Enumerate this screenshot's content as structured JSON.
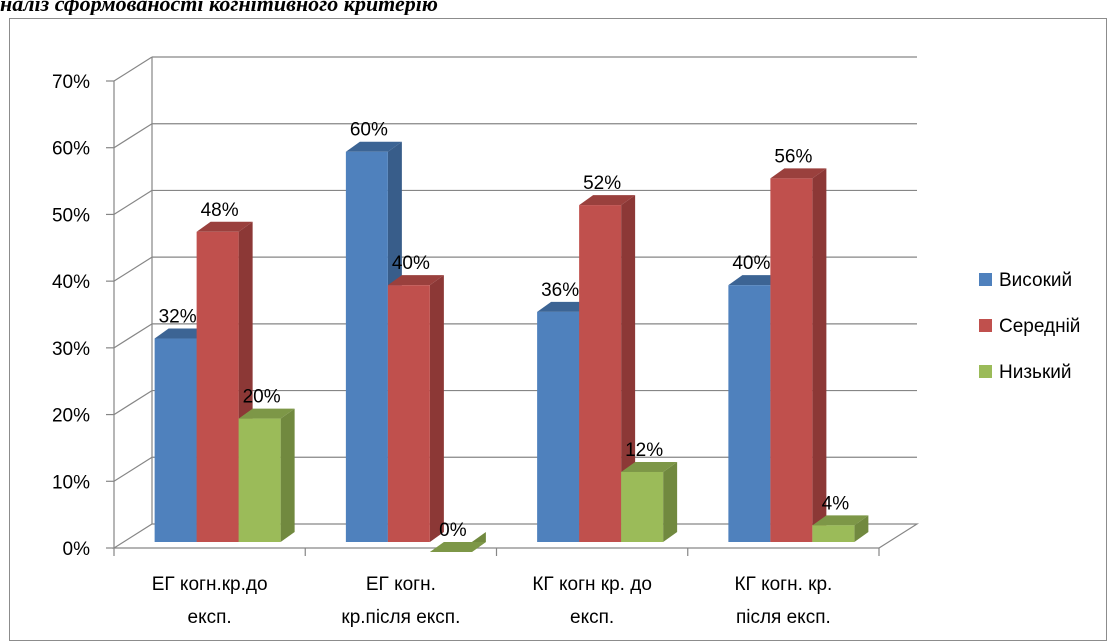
{
  "header": {
    "caption": "наліз сформованості когнітивного критерію"
  },
  "chart_data": {
    "type": "bar",
    "categories": [
      [
        "ЕГ когн.кр.до",
        "експ."
      ],
      [
        "ЕГ когн.",
        "кр.після експ."
      ],
      [
        "КГ когн кр. до",
        "експ."
      ],
      [
        "КГ когн. кр.",
        "після експ."
      ]
    ],
    "series": [
      {
        "name": "Високий",
        "values": [
          32,
          60,
          36,
          40
        ],
        "labels": [
          "32%",
          "60%",
          "36%",
          "40%"
        ]
      },
      {
        "name": "Середній",
        "values": [
          48,
          40,
          52,
          56
        ],
        "labels": [
          "48%",
          "40%",
          "52%",
          "56%"
        ]
      },
      {
        "name": "Низький",
        "values": [
          20,
          0,
          12,
          4
        ],
        "labels": [
          "20%",
          "0%",
          "12%",
          "4%"
        ]
      }
    ],
    "y_ticks": [
      "0%",
      "10%",
      "20%",
      "30%",
      "40%",
      "50%",
      "60%",
      "70%"
    ],
    "ylim": [
      0,
      70
    ],
    "grid": true,
    "legend_position": "right",
    "style": "3d-clustered-column",
    "colors": {
      "series_front": [
        "#4f81bd",
        "#c0504d",
        "#9bbb59"
      ],
      "series_side": [
        "#385d8a",
        "#8c3836",
        "#71893f"
      ],
      "series_top": [
        "#3c6494",
        "#9a403d",
        "#7d9747"
      ],
      "grid": "#868686"
    }
  }
}
